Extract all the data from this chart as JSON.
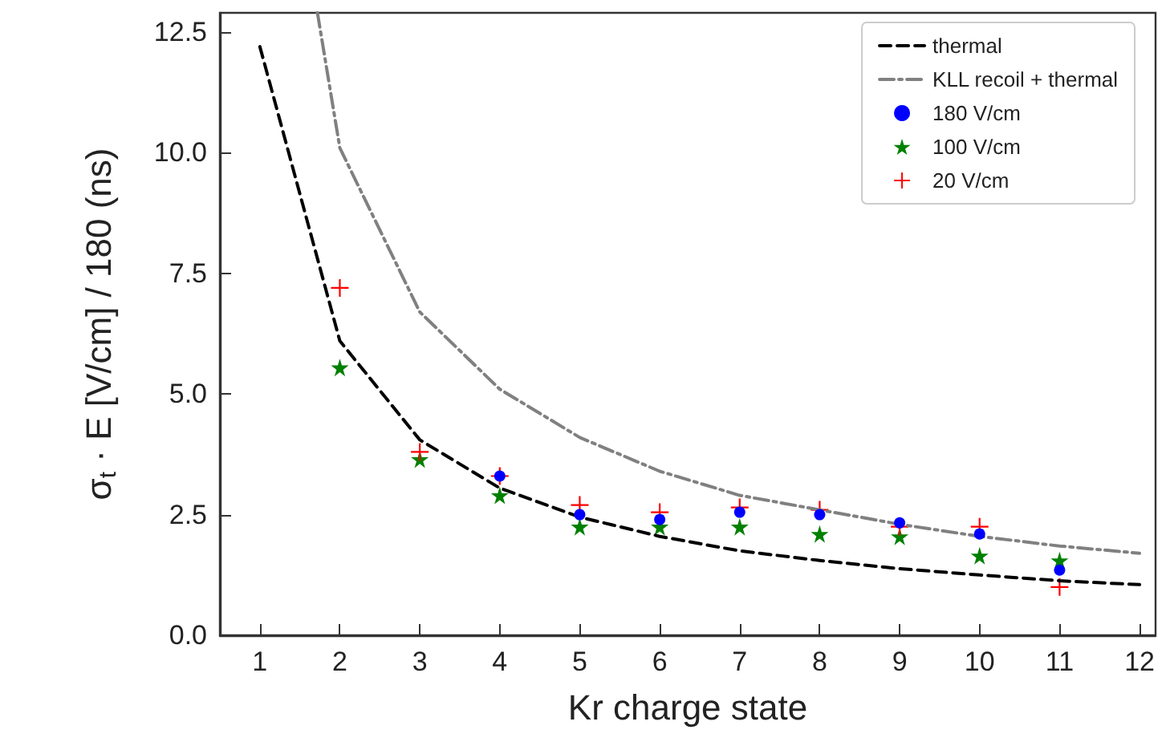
{
  "chart_data": {
    "type": "line",
    "xlabel": "Kr charge state",
    "ylabel": "σ$_{t}$ · E [V/cm] / 180 (ns)",
    "xlim": [
      0.5,
      12.2
    ],
    "xticks": [
      1,
      2,
      3,
      4,
      5,
      6,
      7,
      8,
      9,
      10,
      11,
      12
    ],
    "ylim": [
      0,
      12.9
    ],
    "yticks": [
      {
        "value": 0,
        "label": "0.0"
      },
      2.5,
      {
        "value": 5,
        "label": "5.0"
      },
      7.5,
      {
        "value": 10,
        "label": "10.0"
      },
      12.5
    ],
    "legend": "top right",
    "grid": false,
    "series": [
      {
        "name": "thermal",
        "color": "#000000",
        "line_style": "dashed",
        "marker": "none",
        "x": [
          1,
          2,
          3,
          4,
          5,
          6,
          7,
          8,
          9,
          10,
          11,
          12
        ],
        "values": [
          12.2,
          6.1,
          4.05,
          3.05,
          2.45,
          2.05,
          1.75,
          1.55,
          1.38,
          1.25,
          1.13,
          1.05
        ]
      },
      {
        "name": "KLL recoil + thermal",
        "color": "#808080",
        "line_style": "dashdot",
        "marker": "none",
        "x": [
          1.72,
          2,
          3,
          4,
          5,
          6,
          7,
          8,
          9,
          10,
          11,
          12
        ],
        "values": [
          12.9,
          10.1,
          6.7,
          5.1,
          4.1,
          3.4,
          2.9,
          2.6,
          2.3,
          2.05,
          1.85,
          1.7
        ]
      },
      {
        "name": "180 V/cm",
        "type": "scatter",
        "color": "#0000ff",
        "marker": "circle",
        "x": [
          4,
          5,
          6,
          7,
          8,
          9,
          10,
          11
        ],
        "values": [
          3.3,
          2.5,
          2.4,
          2.55,
          2.5,
          2.33,
          2.1,
          1.35
        ]
      },
      {
        "name": "100 V/cm",
        "type": "scatter",
        "color": "#008000",
        "marker": "star",
        "x": [
          2,
          3,
          4,
          5,
          6,
          7,
          8,
          9,
          10,
          11
        ],
        "values": [
          5.55,
          3.65,
          2.9,
          2.25,
          2.25,
          2.25,
          2.1,
          2.05,
          1.65,
          1.55
        ]
      },
      {
        "name": "20 V/cm",
        "type": "scatter",
        "color": "#ff0000",
        "marker": "cross",
        "x": [
          2,
          3,
          4,
          5,
          6,
          7,
          8,
          9,
          10,
          11
        ],
        "values": [
          7.2,
          3.8,
          3.3,
          2.7,
          2.55,
          2.65,
          2.6,
          2.25,
          2.25,
          1.0
        ]
      }
    ]
  }
}
